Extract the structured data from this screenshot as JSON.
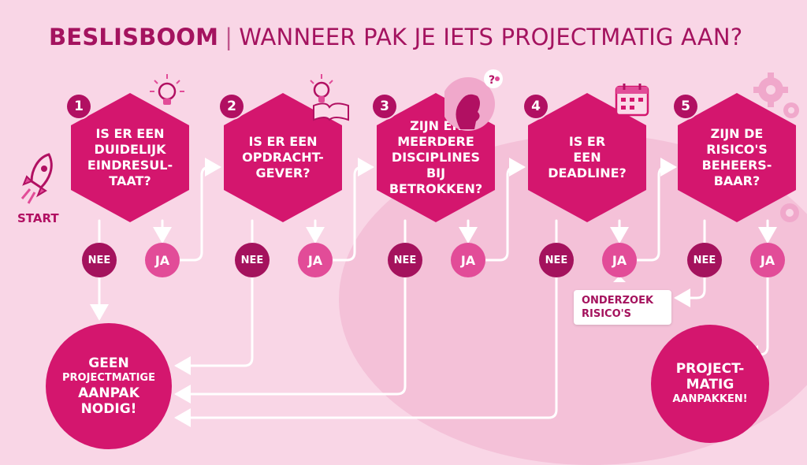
{
  "title": {
    "main": "BESLISBOOM",
    "separator": "|",
    "subtitle": "WANNEER PAK JE IETS PROJECTMATIG AAN?"
  },
  "start_label": "START",
  "steps": [
    {
      "number": "1",
      "question": "IS ER EEN\nDUIDELIJK\nEINDRESUL-\nTAAT?",
      "no": "NEE",
      "yes": "JA",
      "icon": "lightbulb-icon"
    },
    {
      "number": "2",
      "question": "IS ER EEN\nOPDRACHT-\nGEVER?",
      "no": "NEE",
      "yes": "JA",
      "icon": "lightbulb-book-icon"
    },
    {
      "number": "3",
      "question": "ZIJN ER\nMEERDERE\nDISCIPLINES BIJ\nBETROKKEN?",
      "no": "NEE",
      "yes": "JA",
      "icon": "thinking-person-icon"
    },
    {
      "number": "4",
      "question": "IS ER\nEEN\nDEADLINE?",
      "no": "NEE",
      "yes": "JA",
      "icon": "calendar-icon"
    },
    {
      "number": "5",
      "question": "ZIJN DE\nRISICO'S\nBEHEERS-\nBAAR?",
      "no": "NEE",
      "yes": "JA",
      "icon": "gears-icon"
    }
  ],
  "research_box": "ONDERZOEK\nRISICO'S",
  "outcome_no": {
    "line1": "GEEN",
    "line2": "PROJECTMATIGE",
    "line3": "AANPAK",
    "line4": "NODIG!"
  },
  "outcome_yes": {
    "line1": "PROJECT-",
    "line2": "MATIG",
    "line3": "AANPAKKEN!"
  },
  "colors": {
    "background": "#f9d6e6",
    "hexagon": "#d4166e",
    "no_pill": "#a4125d",
    "yes_pill": "#e24c98",
    "title": "#a4135f"
  }
}
